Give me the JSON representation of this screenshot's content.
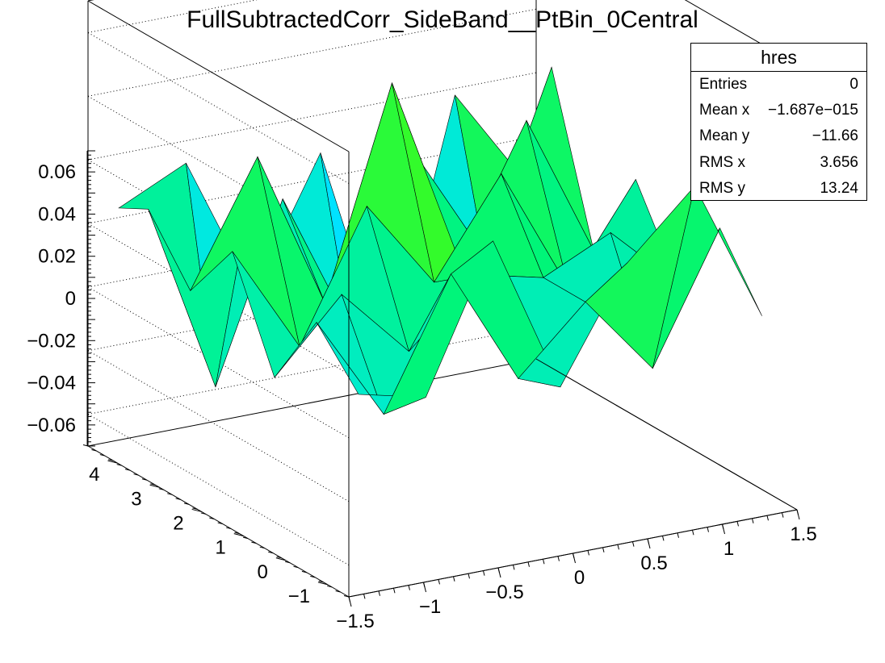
{
  "chart_data": {
    "type": "surface",
    "title": "FullSubtractedCorr_SideBand__PtBin_0Central",
    "xlim": [
      -1.5,
      1.5
    ],
    "ylim": [
      -1.5,
      4.7
    ],
    "zlim": [
      -0.07,
      0.07
    ],
    "x_ticks": [
      -1.5,
      -1,
      -0.5,
      0,
      0.5,
      1,
      1.5
    ],
    "x_tick_labels": [
      "−1.5",
      "−1",
      "−0.5",
      "0",
      "0.5",
      "1",
      "1.5"
    ],
    "y_ticks": [
      -1,
      0,
      1,
      2,
      3,
      4
    ],
    "y_tick_labels": [
      "−1",
      "0",
      "1",
      "2",
      "3",
      "4"
    ],
    "z_ticks": [
      0.06,
      0.04,
      0.02,
      0,
      -0.02,
      -0.04,
      -0.06
    ],
    "z_tick_labels": [
      "0.06",
      "0.04",
      "0.02",
      "0",
      "−0.02",
      "−0.04",
      "−0.06"
    ],
    "x": [
      -1.35,
      -0.9,
      -0.45,
      0,
      0.45,
      0.9,
      1.35
    ],
    "y": [
      -1.2,
      -0.2,
      0.8,
      1.8,
      2.8,
      3.8,
      4.5
    ],
    "z": [
      [
        -0.01,
        -0.015,
        0.03,
        -0.02,
        0.015,
        0.035,
        -0.01
      ],
      [
        0.005,
        -0.028,
        0.012,
        -0.025,
        -0.005,
        -0.03,
        0.01
      ],
      [
        -0.02,
        0.002,
        -0.02,
        0.0,
        -0.005,
        0.005,
        -0.015
      ],
      [
        0.012,
        -0.022,
        0.018,
        -0.01,
        0.02,
        -0.02,
        0.01
      ],
      [
        -0.008,
        0.03,
        -0.02,
        0.045,
        -0.015,
        0.025,
        -0.02
      ],
      [
        0.01,
        -0.05,
        0.005,
        -0.04,
        0.01,
        -0.025,
        0.03
      ],
      [
        0.005,
        0.015,
        -0.03,
        0.01,
        -0.06,
        0.02,
        -0.01
      ]
    ],
    "grid": true
  },
  "stats": {
    "title": "hres",
    "rows": [
      {
        "label": "Entries",
        "value": "0"
      },
      {
        "label": "Mean x",
        "value": "−1.687e−015"
      },
      {
        "label": "Mean y",
        "value": "−11.66"
      },
      {
        "label": "RMS x",
        "value": "3.656"
      },
      {
        "label": "RMS y",
        "value": "13.24"
      }
    ]
  }
}
